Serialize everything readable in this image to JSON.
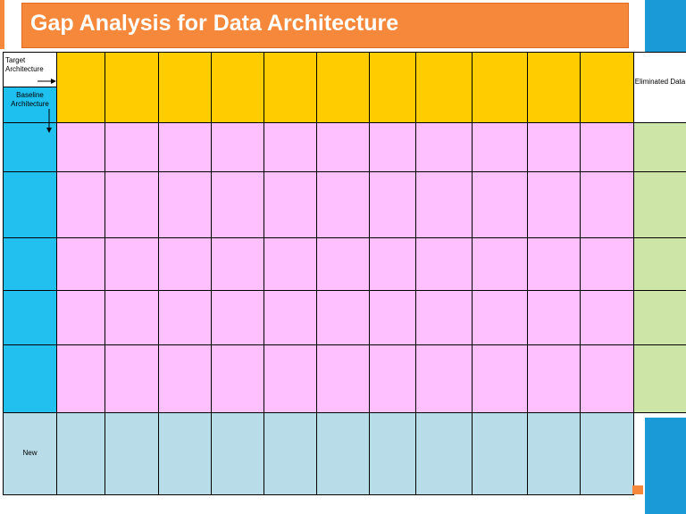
{
  "title": "Gap Analysis for Data Architecture",
  "table": {
    "corner_target": "Target Architecture",
    "corner_baseline": "Baseline Architecture",
    "eliminated_header": "Eliminated Data",
    "new_row_label": "New"
  }
}
